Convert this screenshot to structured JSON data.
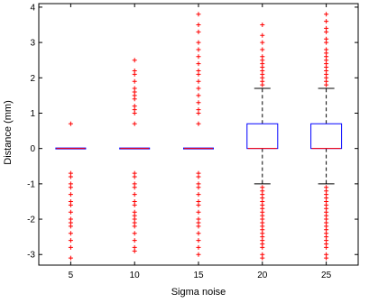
{
  "chart_data": {
    "type": "box",
    "title": "",
    "xlabel": "Sigma noise",
    "ylabel": "Distance (mm)",
    "categories": [
      "5",
      "10",
      "15",
      "20",
      "25"
    ],
    "ylim": [
      -3.3,
      4.1
    ],
    "yticks": [
      -3,
      -2,
      -1,
      0,
      1,
      2,
      3,
      4
    ],
    "grid": false,
    "colors": {
      "box": "#0000ff",
      "median": "#ff0000",
      "outlier": "#ff0000",
      "whisker": "#000000",
      "axes": "#000000"
    },
    "boxes": [
      {
        "category": "5",
        "q1": 0,
        "median": 0,
        "q3": 0,
        "whisker_low": 0,
        "whisker_high": 0,
        "outliers": [
          0.7,
          -0.7,
          -0.8,
          -1.0,
          -1.1,
          -1.3,
          -1.5,
          -1.6,
          -1.8,
          -2.0,
          -2.1,
          -2.2,
          -2.4,
          -2.6,
          -2.8,
          -3.1
        ]
      },
      {
        "category": "10",
        "q1": 0,
        "median": 0,
        "q3": 0,
        "whisker_low": 0,
        "whisker_high": 0,
        "outliers": [
          2.5,
          2.2,
          2.1,
          1.9,
          1.7,
          1.6,
          1.5,
          1.4,
          1.2,
          1.1,
          1.0,
          0.7,
          -0.7,
          -0.8,
          -1.0,
          -1.1,
          -1.3,
          -1.5,
          -1.6,
          -1.8,
          -1.9,
          -2.0,
          -2.1,
          -2.2,
          -2.4,
          -2.6,
          -2.8,
          -2.9
        ]
      },
      {
        "category": "15",
        "q1": 0,
        "median": 0,
        "q3": 0,
        "whisker_low": 0,
        "whisker_high": 0,
        "outliers": [
          3.8,
          3.5,
          3.3,
          3.0,
          2.8,
          2.6,
          2.4,
          2.2,
          2.1,
          1.9,
          1.7,
          1.5,
          1.3,
          1.1,
          1.0,
          0.7,
          -0.7,
          -0.8,
          -1.0,
          -1.1,
          -1.3,
          -1.5,
          -1.6,
          -1.8,
          -2.0,
          -2.1,
          -2.2,
          -2.4,
          -2.6,
          -2.8,
          -3.0
        ]
      },
      {
        "category": "20",
        "q1": 0,
        "median": 0,
        "q3": 0.7,
        "whisker_low": -1.0,
        "whisker_high": 1.7,
        "outliers": [
          3.5,
          3.2,
          3.0,
          2.8,
          2.6,
          2.5,
          2.4,
          2.3,
          2.2,
          2.1,
          2.0,
          1.9,
          1.8,
          -1.1,
          -1.2,
          -1.3,
          -1.4,
          -1.5,
          -1.6,
          -1.7,
          -1.8,
          -1.9,
          -2.0,
          -2.1,
          -2.2,
          -2.3,
          -2.4,
          -2.5,
          -2.6,
          -2.7,
          -2.8,
          -3.0,
          -3.1
        ]
      },
      {
        "category": "25",
        "q1": 0,
        "median": 0,
        "q3": 0.7,
        "whisker_low": -1.0,
        "whisker_high": 1.7,
        "outliers": [
          3.8,
          3.6,
          3.4,
          3.3,
          3.1,
          3.0,
          2.8,
          2.7,
          2.6,
          2.5,
          2.4,
          2.3,
          2.2,
          2.1,
          2.0,
          1.9,
          1.8,
          -1.1,
          -1.2,
          -1.3,
          -1.4,
          -1.5,
          -1.6,
          -1.7,
          -1.8,
          -1.9,
          -2.0,
          -2.1,
          -2.2,
          -2.3,
          -2.4,
          -2.5,
          -2.6,
          -2.7,
          -2.8,
          -3.0,
          -3.1
        ]
      }
    ]
  }
}
